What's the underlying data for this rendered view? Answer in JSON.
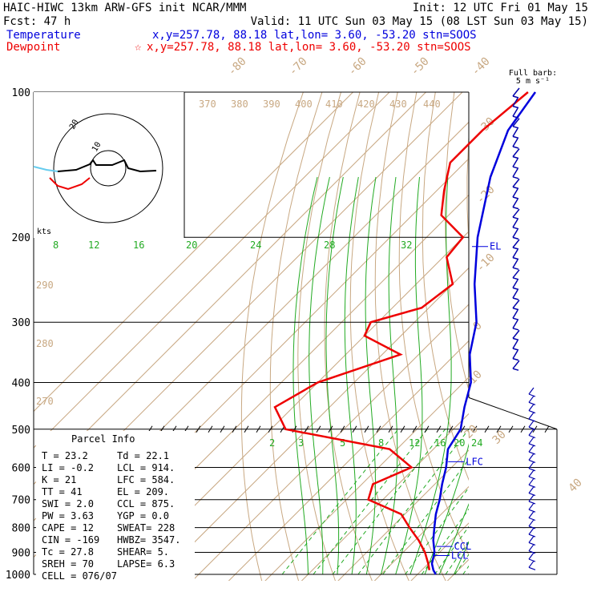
{
  "header": {
    "line1_left": "HAIC-HIWC 13km ARW-GFS init   NCAR/MMM",
    "line1_right": "Init: 12 UTC Fri 01 May 15",
    "line2_left": "Fcst:   47 h",
    "line2_right": "Valid: 11 UTC Sun 03 May 15 (08 LST Sun 03 May 15)",
    "temp_label": "Temperature",
    "temp_info": "x,y=257.78, 88.18    lat,lon=  3.60, -53.20  stn=SOOS",
    "dew_label": "Dewpoint",
    "dew_marker": "☆",
    "dew_info": "x,y=257.78, 88.18    lat,lon=  3.60, -53.20  stn=SOOS"
  },
  "barb_header": {
    "line1": "Full barb:",
    "line2": "5 m s⁻¹"
  },
  "colors": {
    "temperature": "#0000dd",
    "dewpoint": "#ee0000",
    "isotherm": "#c8a882",
    "mixing_ratio": "#22aa22",
    "adiabat": "#22aa22",
    "isobar": "#000000",
    "parcel": "#ff0000",
    "hodo_wind": "#66ccee"
  },
  "chart_data": {
    "type": "skew-t",
    "pressure_levels": [
      100,
      200,
      300,
      400,
      500,
      600,
      700,
      800,
      900,
      1000
    ],
    "pressure_labels": [
      "100",
      "200",
      "300",
      "400",
      "500",
      "600",
      "700",
      "800",
      "900",
      "1000"
    ],
    "isotherm_labels": [
      "-80",
      "-70",
      "-60",
      "-50",
      "-40",
      "-30",
      "-20",
      "-10",
      "0",
      "10",
      "20",
      "30",
      "40"
    ],
    "theta_labels": [
      "370",
      "380",
      "390",
      "400",
      "410",
      "420",
      "430",
      "440",
      "290",
      "280",
      "270"
    ],
    "mixing_ratio_upper": [
      "8",
      "12",
      "16",
      "20",
      "24",
      "28",
      "32"
    ],
    "mixing_ratio_lower": [
      "2",
      "3",
      "5",
      "8",
      "12",
      "16",
      "20",
      "24"
    ],
    "levels": {
      "el": "EL",
      "lfc": "LFC",
      "ccl": "CCL",
      "lcl": "LCL"
    },
    "temperature_profile": [
      {
        "p": 1000,
        "t": 25.0
      },
      {
        "p": 980,
        "t": 23.2
      },
      {
        "p": 950,
        "t": 21.0
      },
      {
        "p": 900,
        "t": 18.6
      },
      {
        "p": 850,
        "t": 15.0
      },
      {
        "p": 800,
        "t": 11.8
      },
      {
        "p": 750,
        "t": 8.5
      },
      {
        "p": 700,
        "t": 5.6
      },
      {
        "p": 650,
        "t": 2.0
      },
      {
        "p": 600,
        "t": -1.5
      },
      {
        "p": 550,
        "t": -6.0
      },
      {
        "p": 500,
        "t": -8.0
      },
      {
        "p": 450,
        "t": -13.0
      },
      {
        "p": 400,
        "t": -18.0
      },
      {
        "p": 350,
        "t": -26.0
      },
      {
        "p": 300,
        "t": -33.0
      },
      {
        "p": 250,
        "t": -44.0
      },
      {
        "p": 200,
        "t": -56.0
      },
      {
        "p": 150,
        "t": -69.0
      },
      {
        "p": 120,
        "t": -77.0
      },
      {
        "p": 100,
        "t": -80.0
      }
    ],
    "dewpoint_profile": [
      {
        "p": 980,
        "t": 22.1
      },
      {
        "p": 950,
        "t": 20.0
      },
      {
        "p": 900,
        "t": 16.0
      },
      {
        "p": 850,
        "t": 11.0
      },
      {
        "p": 800,
        "t": 5.0
      },
      {
        "p": 750,
        "t": -1.0
      },
      {
        "p": 700,
        "t": -14.0
      },
      {
        "p": 650,
        "t": -17.0
      },
      {
        "p": 600,
        "t": -11.0
      },
      {
        "p": 550,
        "t": -22.0
      },
      {
        "p": 500,
        "t": -56.0
      },
      {
        "p": 450,
        "t": -65.0
      },
      {
        "p": 400,
        "t": -60.0
      },
      {
        "p": 350,
        "t": -45.0
      },
      {
        "p": 320,
        "t": -60.0
      },
      {
        "p": 300,
        "t": -62.0
      },
      {
        "p": 280,
        "t": -52.0
      },
      {
        "p": 250,
        "t": -50.0
      },
      {
        "p": 220,
        "t": -59.0
      },
      {
        "p": 200,
        "t": -60.0
      },
      {
        "p": 180,
        "t": -72.0
      },
      {
        "p": 160,
        "t": -78.0
      },
      {
        "p": 140,
        "t": -84.0
      },
      {
        "p": 120,
        "t": -84.0
      },
      {
        "p": 100,
        "t": -82.0
      }
    ],
    "parcel_curve": [
      {
        "p": 980,
        "t": 23.2
      },
      {
        "p": 914,
        "t": 19.5
      }
    ],
    "wind_barbs_right_count": 28,
    "wind_barbs_left_count": 22
  },
  "hodograph": {
    "units": "kts",
    "ring_labels": [
      "10",
      "20"
    ]
  },
  "parcel_info": {
    "title": "Parcel Info",
    "rows": [
      {
        "left": "T  =    23.2",
        "right": "Td =  22.1"
      },
      {
        "left": "LI =    -0.2",
        "right": "LCL =  914."
      },
      {
        "left": "K  =      21",
        "right": "LFC =  584."
      },
      {
        "left": "TT =      41",
        "right": "EL  =  209."
      },
      {
        "left": "SWI =    2.0",
        "right": "CCL =  875."
      },
      {
        "left": "PW =    3.63",
        "right": "YGP =   0.0"
      },
      {
        "left": "CAPE =    12",
        "right": "SWEAT=  228"
      },
      {
        "left": "CIN =   -169",
        "right": "HWBZ= 3547."
      },
      {
        "left": "Tc =    27.8",
        "right": "SHEAR=   5."
      },
      {
        "left": "SREH =    70",
        "right": "LAPSE=  6.3"
      },
      {
        "left": "CELL = 076/07",
        "right": ""
      }
    ]
  }
}
